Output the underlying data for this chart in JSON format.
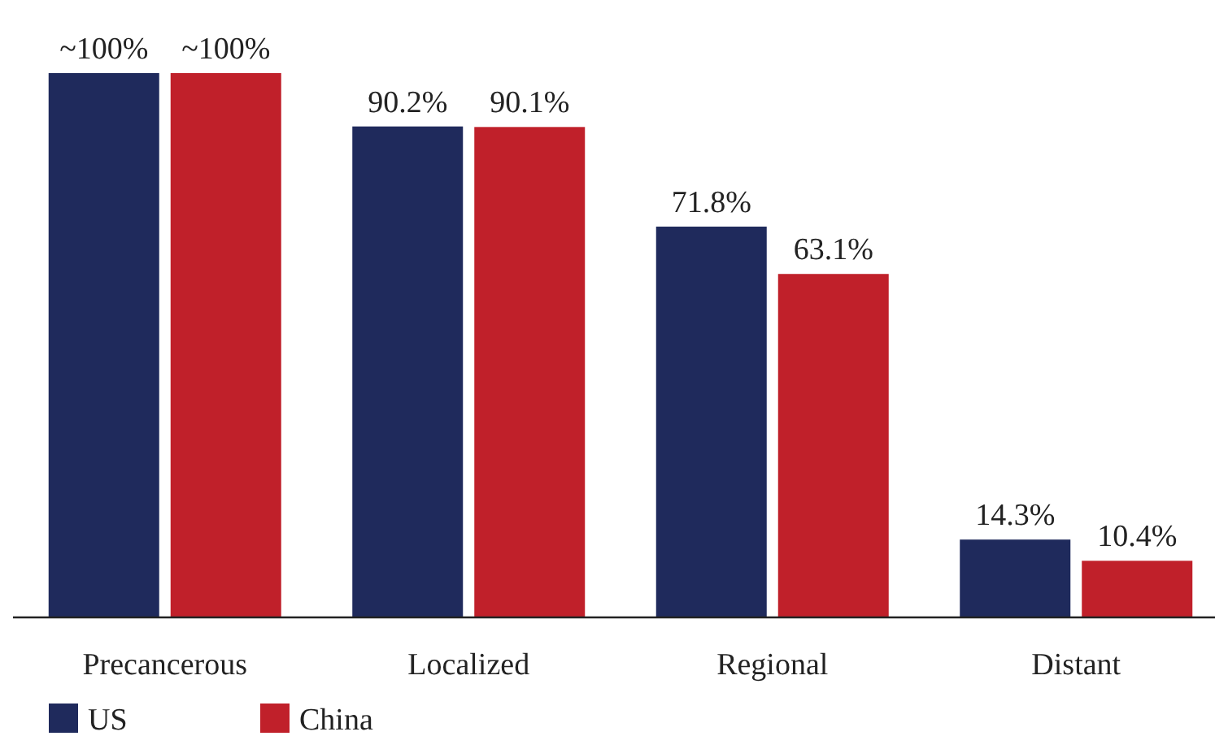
{
  "chart_data": {
    "type": "bar",
    "categories": [
      "Precancerous",
      "Localized",
      "Regional",
      "Distant"
    ],
    "series": [
      {
        "name": "US",
        "color": "#1f2a5c",
        "values": [
          100,
          90.2,
          71.8,
          14.3
        ],
        "value_labels": [
          "~100%",
          "90.2%",
          "71.8%",
          "14.3%"
        ]
      },
      {
        "name": "China",
        "color": "#c0202a",
        "values": [
          100,
          90.1,
          63.1,
          10.4
        ],
        "value_labels": [
          "~100%",
          "90.1%",
          "63.1%",
          "10.4%"
        ]
      }
    ],
    "legend": "bottom left"
  }
}
